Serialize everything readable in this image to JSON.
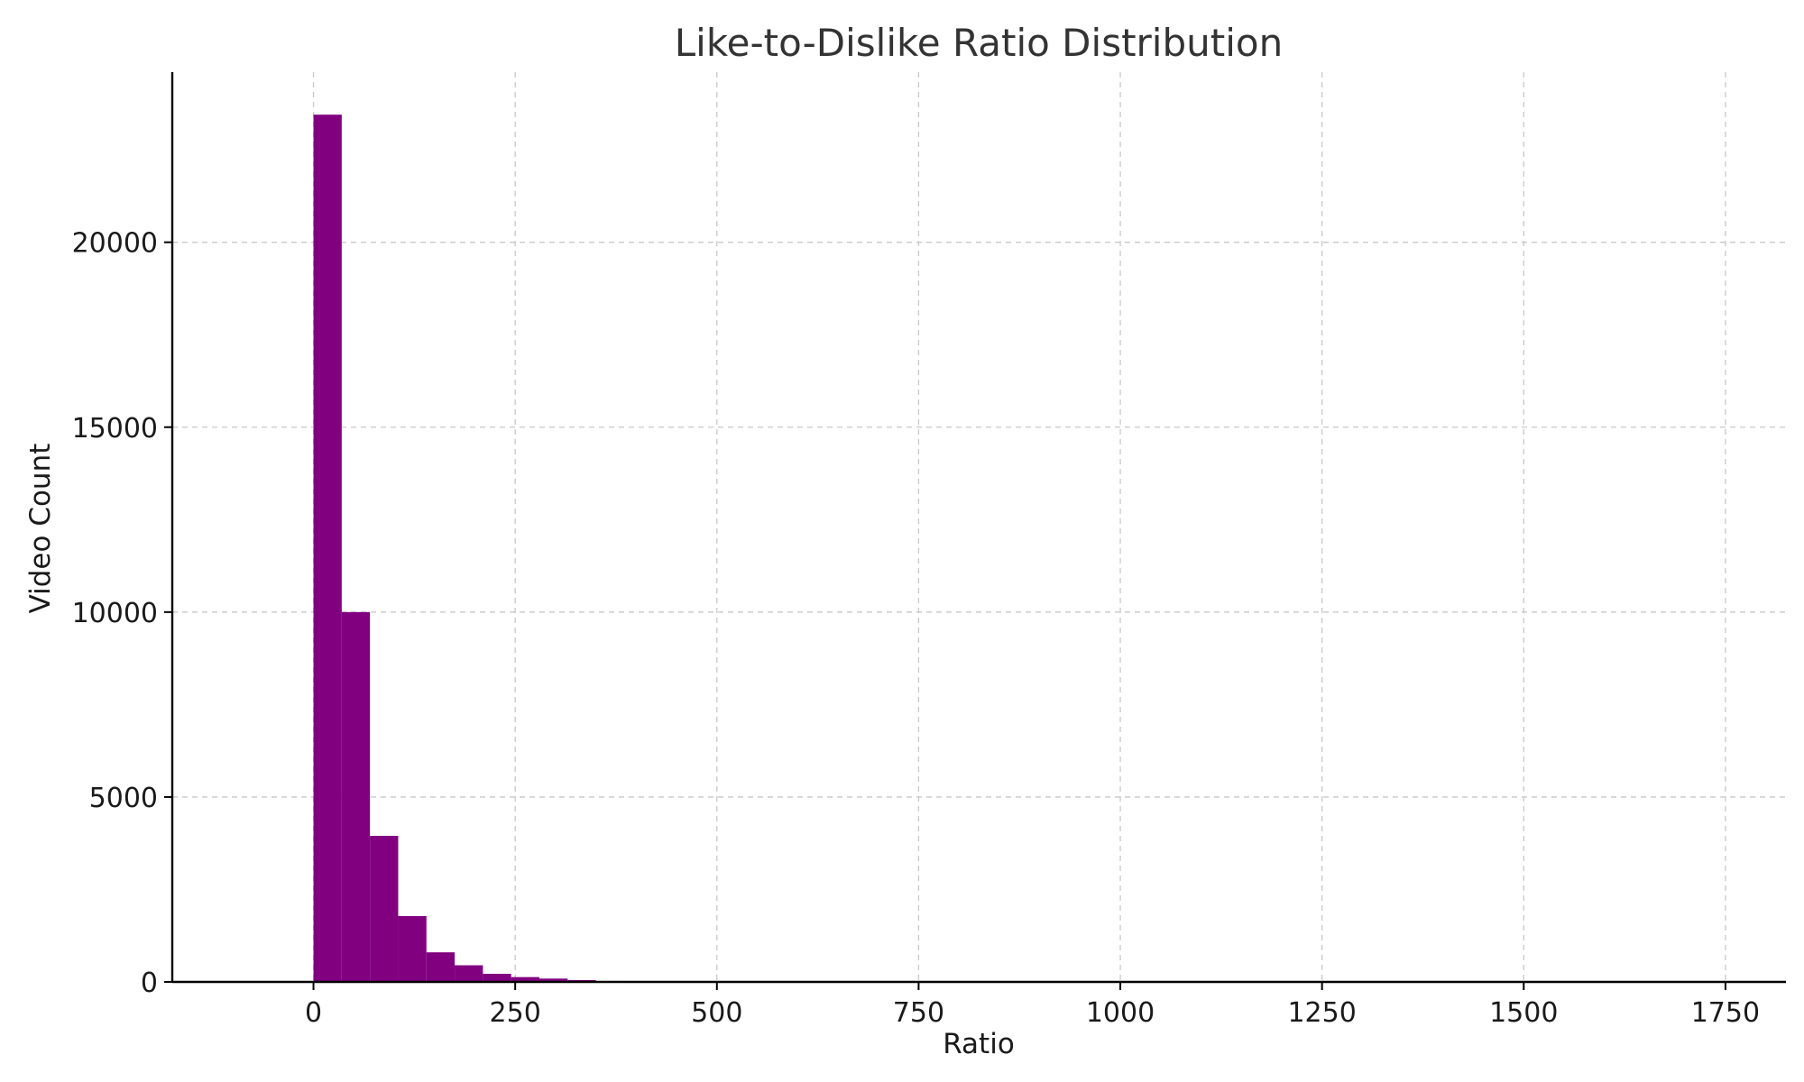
{
  "chart_data": {
    "type": "bar",
    "title": "Like-to-Dislike Ratio Distribution",
    "xlabel": "Ratio",
    "ylabel": "Video Count",
    "xlim": [
      -175,
      1825
    ],
    "ylim": [
      0,
      24600
    ],
    "xticks": [
      0,
      250,
      500,
      750,
      1000,
      1250,
      1500,
      1750
    ],
    "yticks": [
      0,
      5000,
      10000,
      15000,
      20000
    ],
    "xtick_labels": [
      "0",
      "250",
      "500",
      "750",
      "1000",
      "1250",
      "1500",
      "1750"
    ],
    "ytick_labels": [
      "0",
      "5000",
      "10000",
      "15000",
      "20000"
    ],
    "grid": true,
    "bar_color": "#800080",
    "bins": [
      {
        "x0": 0,
        "x1": 35,
        "count": 23450
      },
      {
        "x0": 35,
        "x1": 70,
        "count": 10000
      },
      {
        "x0": 70,
        "x1": 105,
        "count": 3950
      },
      {
        "x0": 105,
        "x1": 140,
        "count": 1780
      },
      {
        "x0": 140,
        "x1": 175,
        "count": 800
      },
      {
        "x0": 175,
        "x1": 210,
        "count": 450
      },
      {
        "x0": 210,
        "x1": 245,
        "count": 220
      },
      {
        "x0": 245,
        "x1": 280,
        "count": 130
      },
      {
        "x0": 280,
        "x1": 315,
        "count": 90
      },
      {
        "x0": 315,
        "x1": 350,
        "count": 50
      },
      {
        "x0": 350,
        "x1": 385,
        "count": 25
      },
      {
        "x0": 385,
        "x1": 420,
        "count": 12
      },
      {
        "x0": 420,
        "x1": 455,
        "count": 6
      }
    ]
  }
}
